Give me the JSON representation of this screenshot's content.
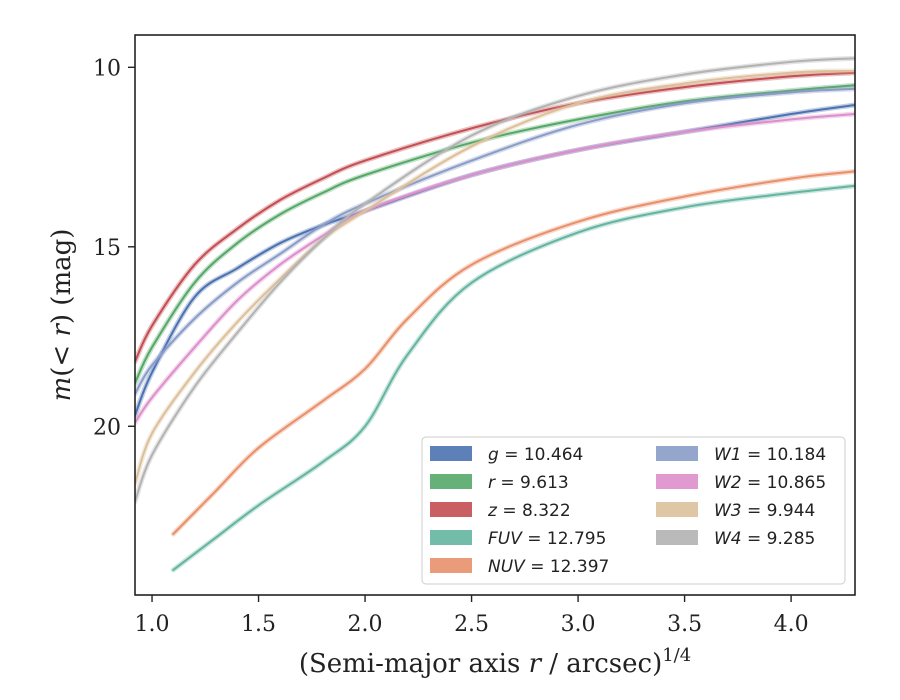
{
  "chart_data": {
    "type": "line",
    "xlabel": "(Semi-major axis r / arcsec)^1/4",
    "xlabel_parts": {
      "main": "(Semi-major axis ",
      "var": "r",
      "rest": " / arcsec)",
      "sup": "1/4"
    },
    "ylabel": "m(< r) (mag)",
    "ylabel_parts": {
      "m": "m",
      "open": "(",
      "lt": "< ",
      "r": "r",
      "close": ")",
      "unit": " (mag)"
    },
    "xlim": [
      0.92,
      4.3
    ],
    "ylim": [
      24.7,
      9.1
    ],
    "y_inverted": true,
    "xticks": [
      {
        "value": 1.0,
        "label": "1.0"
      },
      {
        "value": 1.5,
        "label": "1.5"
      },
      {
        "value": 2.0,
        "label": "2.0"
      },
      {
        "value": 2.5,
        "label": "2.5"
      },
      {
        "value": 3.0,
        "label": "3.0"
      },
      {
        "value": 3.5,
        "label": "3.5"
      },
      {
        "value": 4.0,
        "label": "4.0"
      }
    ],
    "yticks": [
      {
        "value": 10,
        "label": "10"
      },
      {
        "value": 15,
        "label": "15"
      },
      {
        "value": 20,
        "label": "20"
      }
    ],
    "grid": false,
    "legend_placement": "lower-right",
    "legend_columns": 2,
    "series": [
      {
        "name": "g",
        "legend_var": "g",
        "legend_value": "10.464",
        "color": "#4c72b0",
        "x": [
          0.92,
          1.0,
          1.2,
          1.4,
          1.6,
          1.8,
          2.0,
          2.5,
          3.0,
          3.5,
          4.0,
          4.3
        ],
        "y": [
          19.7,
          18.5,
          16.4,
          15.6,
          14.9,
          14.4,
          14.0,
          13.0,
          12.3,
          11.8,
          11.3,
          11.05
        ]
      },
      {
        "name": "r",
        "legend_var": "r",
        "legend_value": "9.613",
        "color": "#55a868",
        "x": [
          0.92,
          1.0,
          1.2,
          1.4,
          1.6,
          1.8,
          2.0,
          2.5,
          3.0,
          3.5,
          4.0,
          4.3
        ],
        "y": [
          18.8,
          17.8,
          16.0,
          14.9,
          14.1,
          13.5,
          13.0,
          12.1,
          11.45,
          10.95,
          10.65,
          10.5
        ]
      },
      {
        "name": "z",
        "legend_var": "z",
        "legend_value": "8.322",
        "color": "#c44e52",
        "x": [
          0.92,
          1.0,
          1.2,
          1.4,
          1.6,
          1.8,
          2.0,
          2.5,
          3.0,
          3.5,
          4.0,
          4.3
        ],
        "y": [
          18.2,
          17.2,
          15.5,
          14.5,
          13.7,
          13.1,
          12.6,
          11.7,
          11.0,
          10.55,
          10.25,
          10.15
        ]
      },
      {
        "name": "FUV",
        "legend_var": "FUV",
        "legend_value": "12.795",
        "color": "#64b5a0",
        "x": [
          1.1,
          1.3,
          1.5,
          1.8,
          2.0,
          2.2,
          2.5,
          3.0,
          3.5,
          4.0,
          4.3
        ],
        "y": [
          24.0,
          23.1,
          22.2,
          21.0,
          20.0,
          18.0,
          16.0,
          14.6,
          13.9,
          13.5,
          13.3
        ]
      },
      {
        "name": "NUV",
        "legend_var": "NUV",
        "legend_value": "12.397",
        "color": "#e8906a",
        "x": [
          1.1,
          1.3,
          1.5,
          1.8,
          2.0,
          2.2,
          2.5,
          3.0,
          3.5,
          4.0,
          4.3
        ],
        "y": [
          23.0,
          21.8,
          20.6,
          19.3,
          18.4,
          17.0,
          15.5,
          14.3,
          13.6,
          13.1,
          12.9
        ]
      },
      {
        "name": "W1",
        "legend_var": "W1",
        "legend_value": "10.184",
        "color": "#8a9cc8",
        "x": [
          0.92,
          1.0,
          1.2,
          1.4,
          1.6,
          1.8,
          2.0,
          2.5,
          3.0,
          3.5,
          4.0,
          4.3
        ],
        "y": [
          19.1,
          18.3,
          17.0,
          16.0,
          15.2,
          14.4,
          13.8,
          12.6,
          11.6,
          11.0,
          10.7,
          10.6
        ]
      },
      {
        "name": "W2",
        "legend_var": "W2",
        "legend_value": "10.865",
        "color": "#dd8fcb",
        "x": [
          0.92,
          1.0,
          1.2,
          1.4,
          1.6,
          1.8,
          2.0,
          2.5,
          3.0,
          3.5,
          4.0,
          4.3
        ],
        "y": [
          19.9,
          19.2,
          17.8,
          16.5,
          15.5,
          14.7,
          14.0,
          13.0,
          12.3,
          11.8,
          11.45,
          11.3
        ]
      },
      {
        "name": "W3",
        "legend_var": "W3",
        "legend_value": "9.944",
        "color": "#dcc09a",
        "x": [
          0.92,
          1.0,
          1.2,
          1.4,
          1.6,
          1.8,
          2.0,
          2.5,
          3.0,
          3.5,
          4.0,
          4.3
        ],
        "y": [
          21.6,
          20.2,
          18.5,
          17.1,
          15.9,
          14.8,
          14.0,
          12.2,
          11.0,
          10.45,
          10.15,
          10.1
        ]
      },
      {
        "name": "W4",
        "legend_var": "W4",
        "legend_value": "9.285",
        "color": "#b3b3b3",
        "x": [
          0.92,
          1.0,
          1.2,
          1.4,
          1.6,
          1.8,
          2.0,
          2.5,
          3.0,
          3.5,
          4.0,
          4.3
        ],
        "y": [
          22.1,
          20.8,
          18.9,
          17.4,
          16.0,
          14.8,
          13.8,
          11.9,
          10.8,
          10.2,
          9.85,
          9.75
        ]
      }
    ]
  }
}
